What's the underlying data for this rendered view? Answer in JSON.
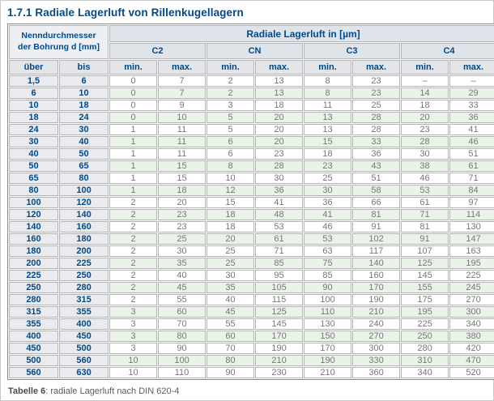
{
  "page": {
    "title": "1.7.1 Radiale Lagerluft von Rillenkugellagern"
  },
  "table": {
    "row_group_header_lines": [
      "Nenndurchmesser",
      "der Bohrung d [mm]"
    ],
    "col_group_header": "Radiale Lagerluft in [µm]",
    "classes": [
      "C2",
      "CN",
      "C3",
      "C4"
    ],
    "sub_headers": {
      "uber": "über",
      "bis": "bis",
      "min": "min.",
      "max": "max."
    },
    "rows": [
      {
        "uber": "1,5",
        "bis": "6",
        "values": [
          "0",
          "7",
          "2",
          "13",
          "8",
          "23",
          "–",
          "–"
        ]
      },
      {
        "uber": "6",
        "bis": "10",
        "values": [
          "0",
          "7",
          "2",
          "13",
          "8",
          "23",
          "14",
          "29"
        ]
      },
      {
        "uber": "10",
        "bis": "18",
        "values": [
          "0",
          "9",
          "3",
          "18",
          "11",
          "25",
          "18",
          "33"
        ]
      },
      {
        "uber": "18",
        "bis": "24",
        "values": [
          "0",
          "10",
          "5",
          "20",
          "13",
          "28",
          "20",
          "36"
        ]
      },
      {
        "uber": "24",
        "bis": "30",
        "values": [
          "1",
          "11",
          "5",
          "20",
          "13",
          "28",
          "23",
          "41"
        ]
      },
      {
        "uber": "30",
        "bis": "40",
        "values": [
          "1",
          "11",
          "6",
          "20",
          "15",
          "33",
          "28",
          "46"
        ]
      },
      {
        "uber": "40",
        "bis": "50",
        "values": [
          "1",
          "11",
          "6",
          "23",
          "18",
          "36",
          "30",
          "51"
        ]
      },
      {
        "uber": "50",
        "bis": "65",
        "values": [
          "1",
          "15",
          "8",
          "28",
          "23",
          "43",
          "38",
          "61"
        ]
      },
      {
        "uber": "65",
        "bis": "80",
        "values": [
          "1",
          "15",
          "10",
          "30",
          "25",
          "51",
          "46",
          "71"
        ]
      },
      {
        "uber": "80",
        "bis": "100",
        "values": [
          "1",
          "18",
          "12",
          "36",
          "30",
          "58",
          "53",
          "84"
        ]
      },
      {
        "uber": "100",
        "bis": "120",
        "values": [
          "2",
          "20",
          "15",
          "41",
          "36",
          "66",
          "61",
          "97"
        ]
      },
      {
        "uber": "120",
        "bis": "140",
        "values": [
          "2",
          "23",
          "18",
          "48",
          "41",
          "81",
          "71",
          "114"
        ]
      },
      {
        "uber": "140",
        "bis": "160",
        "values": [
          "2",
          "23",
          "18",
          "53",
          "46",
          "91",
          "81",
          "130"
        ]
      },
      {
        "uber": "160",
        "bis": "180",
        "values": [
          "2",
          "25",
          "20",
          "61",
          "53",
          "102",
          "91",
          "147"
        ]
      },
      {
        "uber": "180",
        "bis": "200",
        "values": [
          "2",
          "30",
          "25",
          "71",
          "63",
          "117",
          "107",
          "163"
        ]
      },
      {
        "uber": "200",
        "bis": "225",
        "values": [
          "2",
          "35",
          "25",
          "85",
          "75",
          "140",
          "125",
          "195"
        ]
      },
      {
        "uber": "225",
        "bis": "250",
        "values": [
          "2",
          "40",
          "30",
          "95",
          "85",
          "160",
          "145",
          "225"
        ]
      },
      {
        "uber": "250",
        "bis": "280",
        "values": [
          "2",
          "45",
          "35",
          "105",
          "90",
          "170",
          "155",
          "245"
        ]
      },
      {
        "uber": "280",
        "bis": "315",
        "values": [
          "2",
          "55",
          "40",
          "115",
          "100",
          "190",
          "175",
          "270"
        ]
      },
      {
        "uber": "315",
        "bis": "355",
        "values": [
          "3",
          "60",
          "45",
          "125",
          "110",
          "210",
          "195",
          "300"
        ]
      },
      {
        "uber": "355",
        "bis": "400",
        "values": [
          "3",
          "70",
          "55",
          "145",
          "130",
          "240",
          "225",
          "340"
        ]
      },
      {
        "uber": "400",
        "bis": "450",
        "values": [
          "3",
          "80",
          "60",
          "170",
          "150",
          "270",
          "250",
          "380"
        ]
      },
      {
        "uber": "450",
        "bis": "500",
        "values": [
          "3",
          "90",
          "70",
          "190",
          "170",
          "300",
          "280",
          "420"
        ]
      },
      {
        "uber": "500",
        "bis": "560",
        "values": [
          "10",
          "100",
          "80",
          "210",
          "190",
          "330",
          "310",
          "470"
        ]
      },
      {
        "uber": "560",
        "bis": "630",
        "values": [
          "10",
          "110",
          "90",
          "230",
          "210",
          "360",
          "340",
          "520"
        ]
      }
    ]
  },
  "caption": {
    "label": "Tabelle 6",
    "text": ": radiale Lagerluft nach DIN 620-4"
  },
  "colors": {
    "accent_blue": "#004a8c",
    "header_bg_blue": "#dfe4eb",
    "header_bg_gray": "#e4e5e8",
    "dim_col_bg": "#e9ebee",
    "row_green": "#e9f3e8",
    "row_white": "#ffffff",
    "value_gray": "#767676",
    "border_gray": "#b4b4b4"
  }
}
